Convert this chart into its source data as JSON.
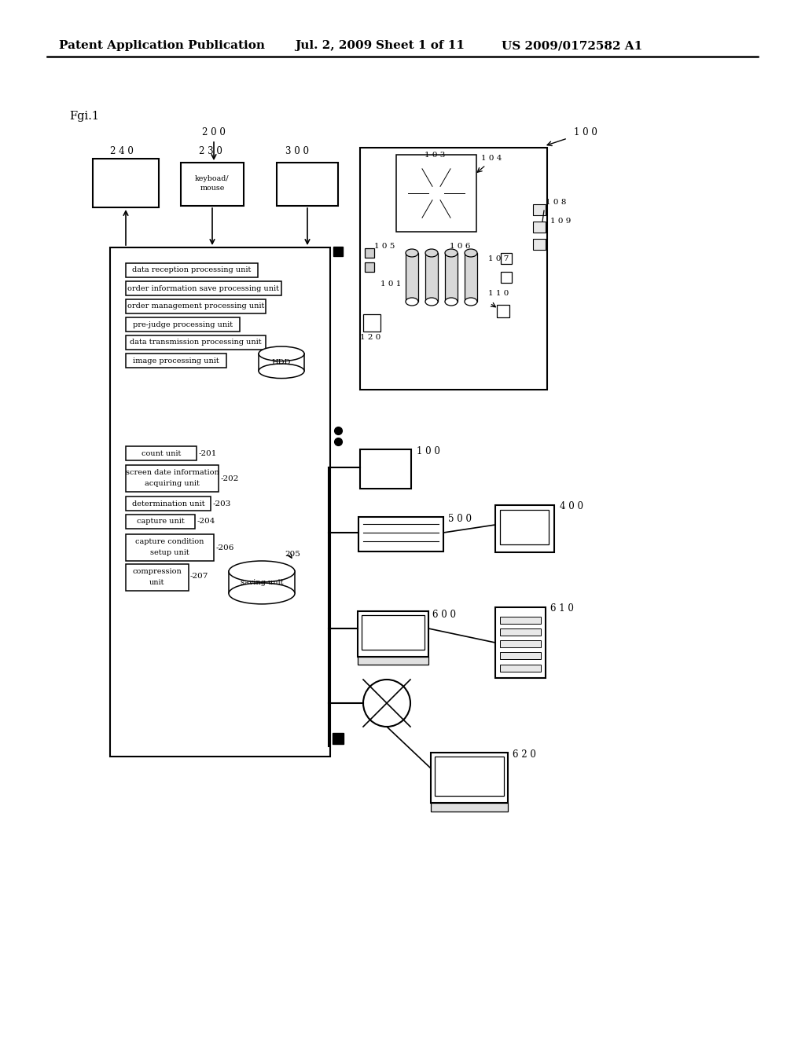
{
  "bg_color": "#ffffff",
  "header_text": "Patent Application Publication",
  "header_date": "Jul. 2, 2009",
  "header_sheet": "Sheet 1 of 11",
  "header_patent": "US 2009/0172582 A1",
  "fig_label": "Fgi.1",
  "label_200": "2 0 0",
  "label_240": "2 4 0",
  "label_230": "2 3 0",
  "label_300": "3 0 0",
  "label_100a": "1 0 0",
  "label_100b": "1 0 0",
  "label_500": "5 0 0",
  "label_400": "4 0 0",
  "label_600": "6 0 0",
  "label_610": "6 1 0",
  "label_620": "6 2 0",
  "label_103": "1 0 3",
  "label_104": "1 0 4",
  "label_108": "1 0 8",
  "label_109": "1 0 9",
  "label_105": "1 0 5",
  "label_106": "1 0 6",
  "label_107": "1 0 7",
  "label_101": "1 0 1",
  "label_110": "1 1 0",
  "label_120": "1 2 0",
  "label_201": "201",
  "label_202": "202",
  "label_203": "203",
  "label_204": "204",
  "label_205": "205",
  "label_206": "206",
  "label_207": "207",
  "proc_units": [
    "data reception processing unit",
    "order information save processing unit",
    "order management processing unit",
    "pre-judge processing unit",
    "data transmission processing unit",
    "image processing unit"
  ],
  "capture_units": [
    "count unit",
    "screen date information\nacquiring unit",
    "determination unit",
    "capture unit",
    "capture condition\nsetup unit"
  ],
  "capture_nums": [
    "201",
    "202",
    "203",
    "204",
    "206"
  ]
}
